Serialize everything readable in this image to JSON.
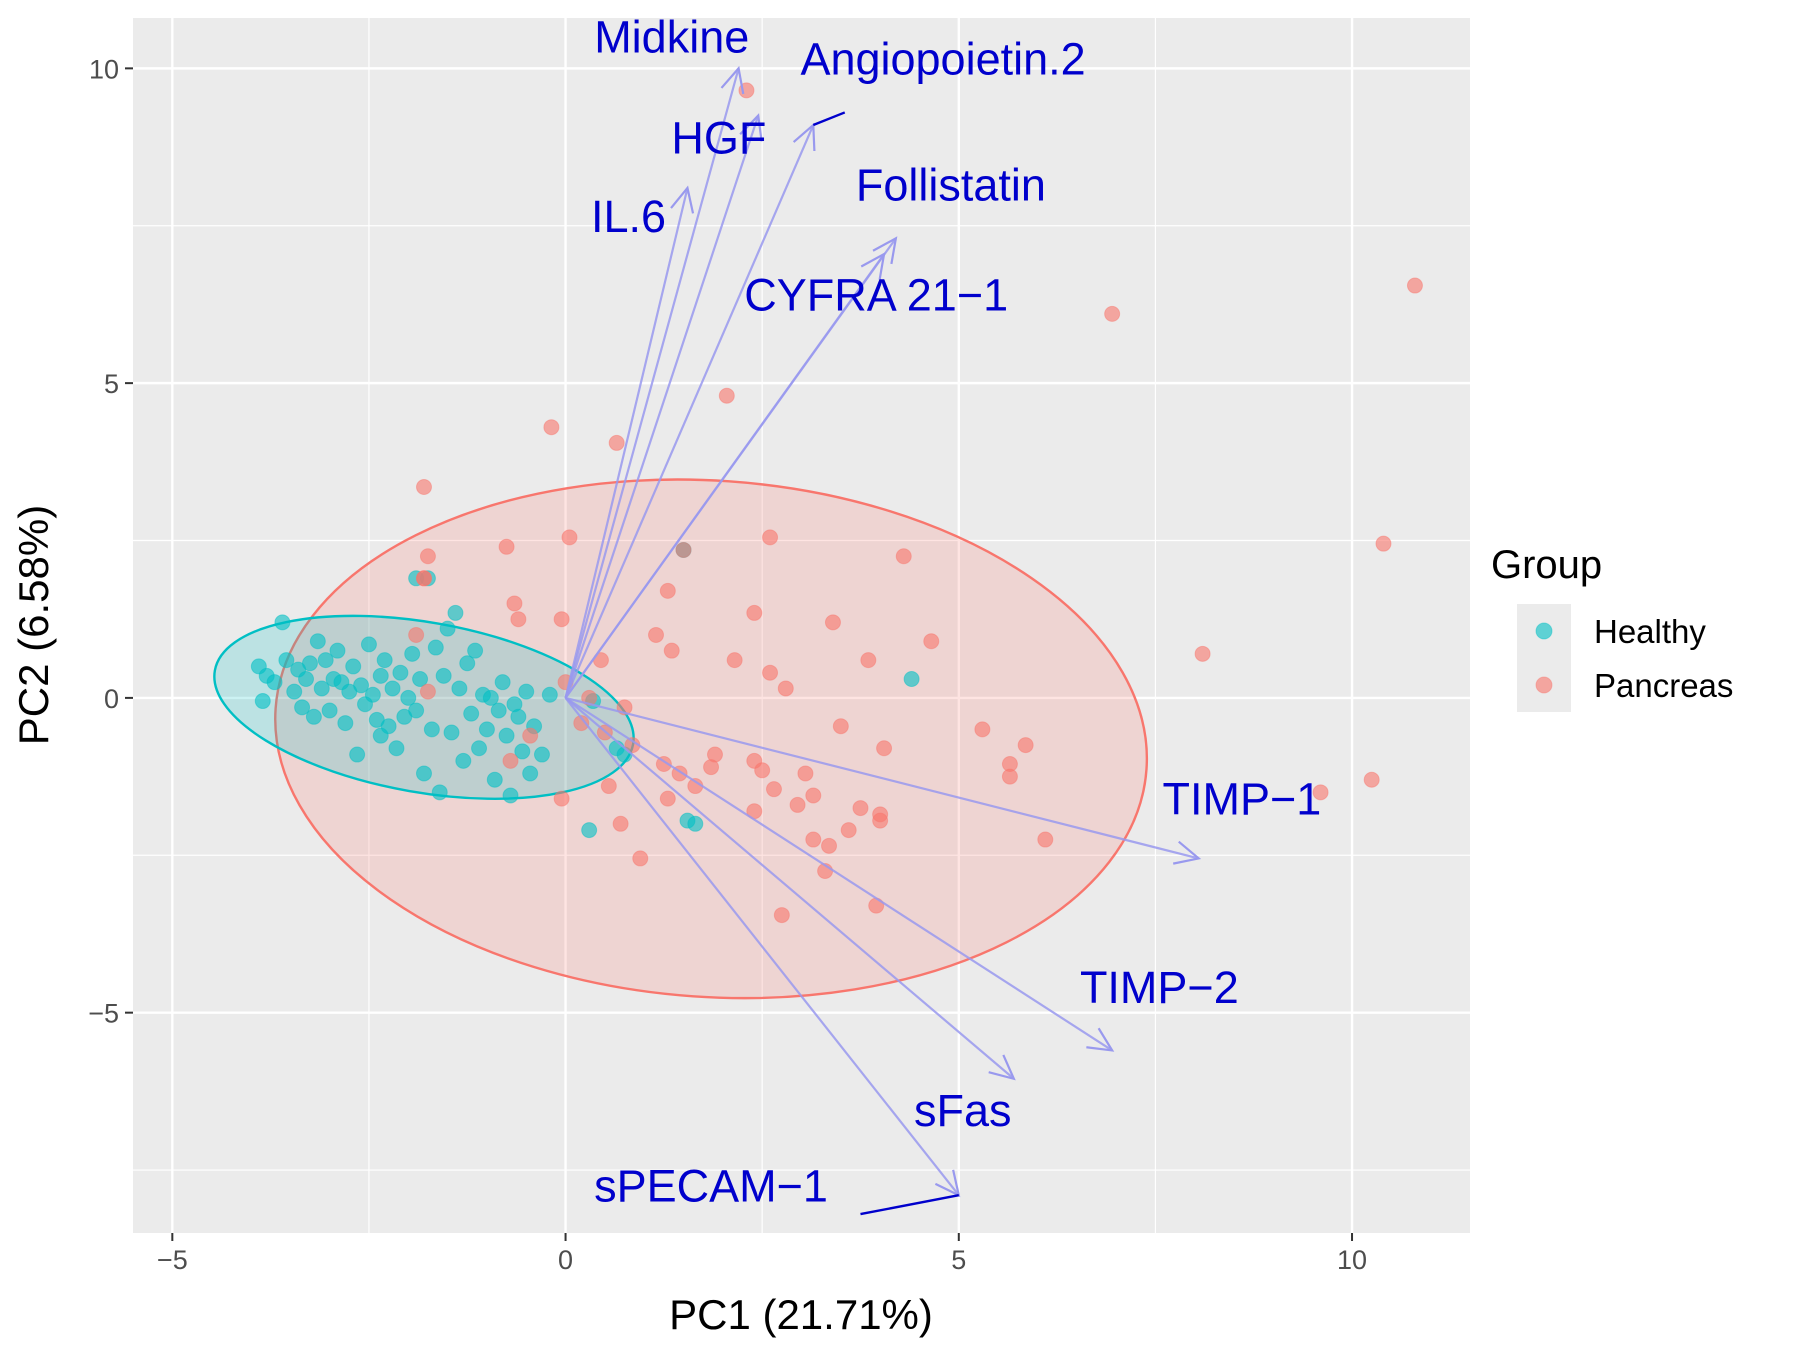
{
  "chart_data": {
    "type": "scatter",
    "subtype": "pca-biplot",
    "title": "",
    "xlabel": "PC1 (21.71%)",
    "ylabel": "PC2 (6.58%)",
    "xlim": [
      -5.5,
      11.5
    ],
    "ylim": [
      -8.5,
      10.8
    ],
    "xticks": [
      -5,
      0,
      5,
      10
    ],
    "xtick_labels": [
      "−5",
      "0",
      "5",
      "10"
    ],
    "yticks": [
      -5,
      0,
      5,
      10
    ],
    "ytick_labels": [
      "−5",
      "0",
      "5",
      "10"
    ],
    "grid": true,
    "legend": {
      "title": "Group",
      "position": "right",
      "entries": [
        {
          "name": "Healthy",
          "color": "#00BFC4"
        },
        {
          "name": "Pancreas",
          "color": "#F8766D"
        }
      ]
    },
    "colors": {
      "panel_background": "#EBEBEB",
      "grid": "#FFFFFF",
      "loading_arrow": "#9999EE",
      "loading_label": "#0000CC",
      "healthy": "#00BFC4",
      "pancreas": "#F8766D"
    },
    "series": [
      {
        "name": "Healthy",
        "points": [
          [
            -3.9,
            0.5
          ],
          [
            -3.85,
            -0.05
          ],
          [
            -3.8,
            0.35
          ],
          [
            -3.7,
            0.25
          ],
          [
            -3.6,
            1.2
          ],
          [
            -3.55,
            0.6
          ],
          [
            -3.45,
            0.1
          ],
          [
            -3.4,
            0.45
          ],
          [
            -3.35,
            -0.15
          ],
          [
            -3.3,
            0.3
          ],
          [
            -3.25,
            0.55
          ],
          [
            -3.2,
            -0.3
          ],
          [
            -3.15,
            0.9
          ],
          [
            -3.1,
            0.15
          ],
          [
            -3.05,
            0.6
          ],
          [
            -3.0,
            -0.2
          ],
          [
            -2.95,
            0.3
          ],
          [
            -2.9,
            0.75
          ],
          [
            -2.85,
            0.25
          ],
          [
            -2.8,
            -0.4
          ],
          [
            -2.75,
            0.1
          ],
          [
            -2.7,
            0.5
          ],
          [
            -2.65,
            -0.9
          ],
          [
            -2.6,
            0.2
          ],
          [
            -2.55,
            -0.1
          ],
          [
            -2.5,
            0.85
          ],
          [
            -2.45,
            0.05
          ],
          [
            -2.4,
            -0.35
          ],
          [
            -2.35,
            0.35
          ],
          [
            -2.3,
            0.6
          ],
          [
            -2.25,
            -0.45
          ],
          [
            -2.2,
            0.15
          ],
          [
            -2.15,
            -0.8
          ],
          [
            -2.1,
            0.4
          ],
          [
            -2.05,
            -0.3
          ],
          [
            -2.0,
            0.0
          ],
          [
            -1.95,
            0.7
          ],
          [
            -1.9,
            -0.2
          ],
          [
            -1.85,
            0.3
          ],
          [
            -1.8,
            -1.2
          ],
          [
            -1.75,
            1.9
          ],
          [
            -1.7,
            -0.5
          ],
          [
            -1.65,
            0.8
          ],
          [
            -1.6,
            -1.5
          ],
          [
            -1.55,
            0.35
          ],
          [
            -1.5,
            1.1
          ],
          [
            -1.45,
            -0.55
          ],
          [
            -1.4,
            1.35
          ],
          [
            -1.35,
            0.15
          ],
          [
            -1.3,
            -1.0
          ],
          [
            -1.25,
            0.55
          ],
          [
            -1.2,
            -0.25
          ],
          [
            -1.15,
            0.75
          ],
          [
            -1.1,
            -0.8
          ],
          [
            -1.05,
            0.05
          ],
          [
            -1.0,
            -0.5
          ],
          [
            -0.95,
            0.0
          ],
          [
            -0.9,
            -1.3
          ],
          [
            -0.85,
            -0.2
          ],
          [
            -0.8,
            0.25
          ],
          [
            -0.75,
            -0.6
          ],
          [
            -0.7,
            -1.55
          ],
          [
            -0.65,
            -0.1
          ],
          [
            -0.6,
            -0.3
          ],
          [
            -0.55,
            -0.85
          ],
          [
            -0.5,
            0.1
          ],
          [
            -0.45,
            -1.2
          ],
          [
            -0.4,
            -0.45
          ],
          [
            -0.3,
            -0.9
          ],
          [
            -0.2,
            0.05
          ],
          [
            0.3,
            -2.1
          ],
          [
            0.35,
            -0.05
          ],
          [
            0.65,
            -0.8
          ],
          [
            0.75,
            -0.9
          ],
          [
            1.5,
            2.35
          ],
          [
            1.55,
            -1.95
          ],
          [
            1.65,
            -2.0
          ],
          [
            4.4,
            0.3
          ],
          [
            -1.9,
            1.9
          ],
          [
            -2.35,
            -0.6
          ]
        ]
      },
      {
        "name": "Pancreas",
        "points": [
          [
            2.3,
            9.65
          ],
          [
            6.95,
            6.1
          ],
          [
            10.8,
            6.55
          ],
          [
            2.05,
            4.8
          ],
          [
            -0.18,
            4.3
          ],
          [
            0.65,
            4.05
          ],
          [
            -1.8,
            3.35
          ],
          [
            1.5,
            2.35
          ],
          [
            0.05,
            2.55
          ],
          [
            2.6,
            2.55
          ],
          [
            10.4,
            2.45
          ],
          [
            -0.75,
            2.4
          ],
          [
            -1.75,
            2.25
          ],
          [
            4.3,
            2.25
          ],
          [
            1.3,
            1.7
          ],
          [
            -1.8,
            1.9
          ],
          [
            -0.65,
            1.5
          ],
          [
            -0.6,
            1.25
          ],
          [
            2.4,
            1.35
          ],
          [
            3.4,
            1.2
          ],
          [
            1.15,
            1.0
          ],
          [
            4.65,
            0.9
          ],
          [
            -1.9,
            1.0
          ],
          [
            0.45,
            0.6
          ],
          [
            1.35,
            0.75
          ],
          [
            8.1,
            0.7
          ],
          [
            0.0,
            0.25
          ],
          [
            3.85,
            0.6
          ],
          [
            2.6,
            0.4
          ],
          [
            -0.05,
            1.25
          ],
          [
            2.8,
            0.15
          ],
          [
            -1.75,
            0.1
          ],
          [
            0.75,
            -0.15
          ],
          [
            0.2,
            -0.4
          ],
          [
            3.5,
            -0.45
          ],
          [
            5.3,
            -0.5
          ],
          [
            -0.45,
            -0.6
          ],
          [
            0.5,
            -0.55
          ],
          [
            4.05,
            -0.8
          ],
          [
            5.85,
            -0.75
          ],
          [
            1.9,
            -0.9
          ],
          [
            2.4,
            -1.0
          ],
          [
            0.85,
            -0.75
          ],
          [
            1.25,
            -1.05
          ],
          [
            1.85,
            -1.1
          ],
          [
            5.65,
            -1.05
          ],
          [
            5.65,
            -1.25
          ],
          [
            2.5,
            -1.15
          ],
          [
            3.05,
            -1.2
          ],
          [
            0.55,
            -1.4
          ],
          [
            2.65,
            -1.45
          ],
          [
            1.3,
            -1.6
          ],
          [
            2.95,
            -1.7
          ],
          [
            3.75,
            -1.75
          ],
          [
            4.0,
            -1.85
          ],
          [
            -0.05,
            -1.6
          ],
          [
            2.4,
            -1.8
          ],
          [
            6.1,
            -2.25
          ],
          [
            0.7,
            -2.0
          ],
          [
            3.15,
            -2.25
          ],
          [
            9.6,
            -1.5
          ],
          [
            10.25,
            -1.3
          ],
          [
            4.0,
            -1.95
          ],
          [
            3.35,
            -2.35
          ],
          [
            0.95,
            -2.55
          ],
          [
            3.3,
            -2.75
          ],
          [
            3.95,
            -3.3
          ],
          [
            2.75,
            -3.45
          ],
          [
            -1.8,
            1.9
          ],
          [
            -0.7,
            -1.0
          ],
          [
            2.15,
            0.6
          ],
          [
            1.65,
            -1.4
          ],
          [
            0.3,
            0.0
          ],
          [
            1.45,
            -1.2
          ],
          [
            3.15,
            -1.55
          ],
          [
            3.6,
            -2.1
          ]
        ]
      }
    ],
    "ellipses": [
      {
        "group": "Healthy",
        "center": [
          -1.8,
          -0.15
        ],
        "rx": 2.7,
        "ry": 1.35,
        "angle_deg": -10
      },
      {
        "group": "Pancreas",
        "center": [
          1.85,
          -0.65
        ],
        "rx": 5.55,
        "ry": 4.1,
        "angle_deg": -4
      }
    ],
    "loadings": [
      {
        "label": "Midkine",
        "end": [
          2.2,
          10.0
        ],
        "label_pos": [
          1.35,
          10.25
        ]
      },
      {
        "label": "Angiopoietin.2",
        "end": [
          3.15,
          9.1
        ],
        "label_pos": [
          4.8,
          9.9
        ],
        "leader_end": [
          3.75,
          9.5
        ]
      },
      {
        "label": "HGF",
        "end": [
          2.45,
          9.25
        ],
        "label_pos": [
          1.95,
          8.65
        ]
      },
      {
        "label": "IL.6",
        "end": [
          1.55,
          8.1
        ],
        "label_pos": [
          0.8,
          7.4
        ]
      },
      {
        "label": "Follistatin",
        "end": [
          4.2,
          7.3
        ],
        "label_pos": [
          4.9,
          7.9
        ]
      },
      {
        "label": "CYFRA 21−1",
        "end": [
          4.05,
          7.05
        ],
        "label_pos": [
          3.95,
          6.15
        ]
      },
      {
        "label": "TIMP−1",
        "end": [
          8.05,
          -2.55
        ],
        "label_pos": [
          8.6,
          -1.85
        ]
      },
      {
        "label": "TIMP−2",
        "end": [
          6.95,
          -5.6
        ],
        "label_pos": [
          7.55,
          -4.85
        ]
      },
      {
        "label": "sFas",
        "end": [
          5.7,
          -6.05
        ],
        "label_pos": [
          5.05,
          -6.8
        ]
      },
      {
        "label": "sPECAM−1",
        "end": [
          5.0,
          -7.9
        ],
        "label_pos": [
          1.85,
          -8.0
        ],
        "leader_end": [
          3.8,
          -8.15
        ]
      }
    ]
  }
}
